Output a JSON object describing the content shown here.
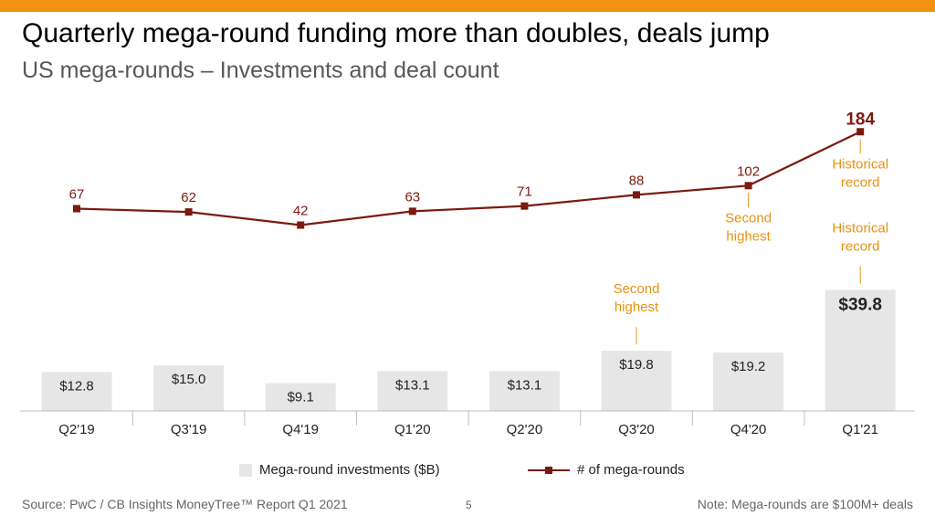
{
  "title": "Quarterly mega-round funding more than doubles, deals jump",
  "subtitle": "US mega-rounds – Investments and deal count",
  "colors": {
    "accent_bar": "#f0920f",
    "bar": "#e6e6e6",
    "line": "#7b1a10",
    "annotation": "#e8920e"
  },
  "chart_data": {
    "type": "bar",
    "categories": [
      "Q2'19",
      "Q3'19",
      "Q4'19",
      "Q1'20",
      "Q2'20",
      "Q3'20",
      "Q4'20",
      "Q1'21"
    ],
    "series": [
      {
        "name": "Mega-round  investments ($B)",
        "type": "bar",
        "values": [
          12.8,
          15.0,
          9.1,
          13.1,
          13.1,
          19.8,
          19.2,
          39.8
        ],
        "labels": [
          "$12.8",
          "$15.0",
          "$9.1",
          "$13.1",
          "$13.1",
          "$19.8",
          "$19.2",
          "$39.8"
        ]
      },
      {
        "name": "# of mega-rounds",
        "type": "line",
        "values": [
          67,
          62,
          42,
          63,
          71,
          88,
          102,
          184
        ]
      }
    ],
    "annotations": [
      {
        "series": 0,
        "index": 5,
        "text": [
          "Second",
          "highest"
        ]
      },
      {
        "series": 0,
        "index": 7,
        "text": [
          "Historical",
          "record"
        ]
      },
      {
        "series": 1,
        "index": 6,
        "text": [
          "Second",
          "highest"
        ]
      },
      {
        "series": 1,
        "index": 7,
        "text": [
          "Historical",
          "record"
        ]
      }
    ],
    "legend_position": "bottom"
  },
  "footer": {
    "source": "Source: PwC / CB Insights MoneyTree™ Report Q1 2021",
    "page_number": "5",
    "note": "Note: Mega-rounds  are $100M+ deals"
  }
}
